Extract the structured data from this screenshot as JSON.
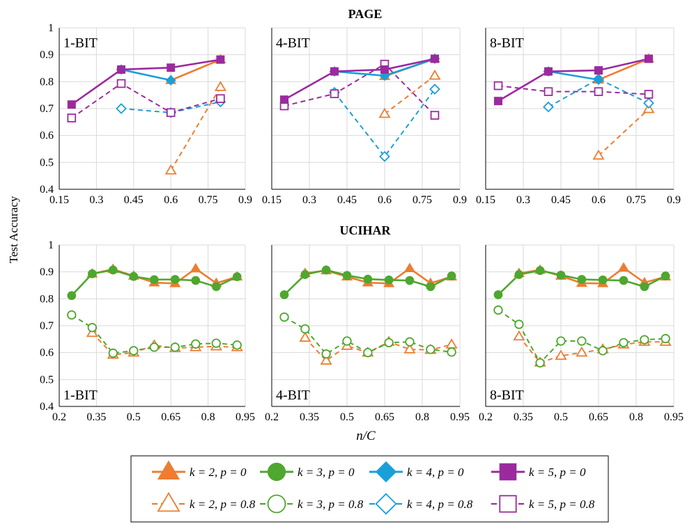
{
  "figure": {
    "ylabel": "Test Accuracy",
    "xlabel_bottom": "n/C"
  },
  "rows": [
    {
      "title": "PAGE",
      "x_ticks": [
        "0.15",
        "0.3",
        "0.45",
        "0.6",
        "0.75",
        "0.9"
      ],
      "xlim": [
        0.15,
        0.9
      ],
      "ylim": [
        0.4,
        1.0
      ],
      "y_ticks": [
        "0.4",
        "0.5",
        "0.6",
        "0.7",
        "0.8",
        "0.9",
        "1"
      ],
      "panel_label_pos": "top-left"
    },
    {
      "title": "UCIHAR",
      "x_ticks": [
        "0.2",
        "0.35",
        "0.5",
        "0.65",
        "0.8",
        "0.95"
      ],
      "xlim": [
        0.2,
        0.95
      ],
      "ylim": [
        0.4,
        1.0
      ],
      "y_ticks": [
        "0.4",
        "0.5",
        "0.6",
        "0.7",
        "0.8",
        "0.9",
        "1"
      ],
      "panel_label_pos": "bottom-left"
    }
  ],
  "series_styles": [
    {
      "id": "k2p0",
      "label": "k = 2, p = 0",
      "color": "#ED7D31",
      "marker": "triangle",
      "filled": true,
      "dashed": false
    },
    {
      "id": "k3p0",
      "label": "k = 3, p = 0",
      "color": "#4EA72E",
      "marker": "circle",
      "filled": true,
      "dashed": false
    },
    {
      "id": "k4p0",
      "label": "k = 4, p = 0",
      "color": "#1A9FD9",
      "marker": "diamond",
      "filled": true,
      "dashed": false
    },
    {
      "id": "k5p0",
      "label": "k = 5, p = 0",
      "color": "#9B2A9F",
      "marker": "square",
      "filled": true,
      "dashed": false
    },
    {
      "id": "k2p8",
      "label": "k = 2, p = 0.8",
      "color": "#ED7D31",
      "marker": "triangle",
      "filled": false,
      "dashed": true
    },
    {
      "id": "k3p8",
      "label": "k = 3, p = 0.8",
      "color": "#4EA72E",
      "marker": "circle",
      "filled": false,
      "dashed": true
    },
    {
      "id": "k4p8",
      "label": "k = 4, p = 0.8",
      "color": "#1A9FD9",
      "marker": "diamond",
      "filled": false,
      "dashed": true
    },
    {
      "id": "k5p8",
      "label": "k = 5, p = 0.8",
      "color": "#9B2A9F",
      "marker": "square",
      "filled": false,
      "dashed": true
    }
  ],
  "chart_data": [
    {
      "type": "line",
      "row": 0,
      "col": 0,
      "dataset": "PAGE",
      "panel_label": "1-BIT",
      "xlabel": "",
      "ylabel": "Test Accuracy",
      "xlim": [
        0.15,
        0.9
      ],
      "ylim": [
        0.4,
        1.0
      ],
      "series": [
        {
          "id": "k2p0",
          "x": [
            0.6,
            0.8
          ],
          "y": [
            0.805,
            0.882
          ]
        },
        {
          "id": "k4p0",
          "x": [
            0.4,
            0.6
          ],
          "y": [
            0.845,
            0.805
          ]
        },
        {
          "id": "k5p0",
          "x": [
            0.2,
            0.4,
            0.6,
            0.8
          ],
          "y": [
            0.715,
            0.845,
            0.852,
            0.882
          ]
        },
        {
          "id": "k2p8",
          "x": [
            0.6,
            0.8
          ],
          "y": [
            0.47,
            0.78
          ]
        },
        {
          "id": "k4p8",
          "x": [
            0.4,
            0.6,
            0.8
          ],
          "y": [
            0.7,
            0.685,
            0.725
          ]
        },
        {
          "id": "k5p8",
          "x": [
            0.2,
            0.4,
            0.6,
            0.8
          ],
          "y": [
            0.665,
            0.793,
            0.685,
            0.737
          ]
        }
      ]
    },
    {
      "type": "line",
      "row": 0,
      "col": 1,
      "dataset": "PAGE",
      "panel_label": "4-BIT",
      "xlabel": "",
      "ylabel": "",
      "xlim": [
        0.15,
        0.9
      ],
      "ylim": [
        0.4,
        1.0
      ],
      "series": [
        {
          "id": "k2p0",
          "x": [
            0.6,
            0.8
          ],
          "y": [
            0.82,
            0.885
          ]
        },
        {
          "id": "k4p0",
          "x": [
            0.4,
            0.6,
            0.8
          ],
          "y": [
            0.838,
            0.822,
            0.885
          ]
        },
        {
          "id": "k5p0",
          "x": [
            0.2,
            0.4,
            0.6,
            0.8
          ],
          "y": [
            0.733,
            0.838,
            0.845,
            0.885
          ]
        },
        {
          "id": "k2p8",
          "x": [
            0.6,
            0.8
          ],
          "y": [
            0.68,
            0.822
          ]
        },
        {
          "id": "k4p8",
          "x": [
            0.4,
            0.6,
            0.8
          ],
          "y": [
            0.76,
            0.522,
            0.772
          ]
        },
        {
          "id": "k5p8",
          "x": [
            0.2,
            0.4,
            0.6,
            0.8
          ],
          "y": [
            0.71,
            0.755,
            0.865,
            0.675
          ]
        }
      ]
    },
    {
      "type": "line",
      "row": 0,
      "col": 2,
      "dataset": "PAGE",
      "panel_label": "8-BIT",
      "xlabel": "",
      "ylabel": "",
      "xlim": [
        0.15,
        0.9
      ],
      "ylim": [
        0.4,
        1.0
      ],
      "series": [
        {
          "id": "k2p0",
          "x": [
            0.6,
            0.8
          ],
          "y": [
            0.807,
            0.885
          ]
        },
        {
          "id": "k4p0",
          "x": [
            0.4,
            0.6
          ],
          "y": [
            0.838,
            0.807
          ]
        },
        {
          "id": "k5p0",
          "x": [
            0.2,
            0.4,
            0.6,
            0.8
          ],
          "y": [
            0.728,
            0.838,
            0.842,
            0.885
          ]
        },
        {
          "id": "k2p8",
          "x": [
            0.6,
            0.8
          ],
          "y": [
            0.525,
            0.698
          ]
        },
        {
          "id": "k4p8",
          "x": [
            0.4,
            0.6,
            0.8
          ],
          "y": [
            0.706,
            0.81,
            0.72
          ]
        },
        {
          "id": "k5p8",
          "x": [
            0.2,
            0.4,
            0.6,
            0.8
          ],
          "y": [
            0.785,
            0.763,
            0.763,
            0.753
          ]
        }
      ]
    },
    {
      "type": "line",
      "row": 1,
      "col": 0,
      "dataset": "UCIHAR",
      "panel_label": "1-BIT",
      "xlabel": "",
      "ylabel": "Test Accuracy",
      "xlim": [
        0.2,
        0.95
      ],
      "ylim": [
        0.4,
        1.0
      ],
      "series": [
        {
          "id": "k2p0",
          "x": [
            0.333,
            0.417,
            0.5,
            0.583,
            0.667,
            0.75,
            0.833,
            0.917
          ],
          "y": [
            0.893,
            0.91,
            0.885,
            0.86,
            0.857,
            0.912,
            0.858,
            0.882
          ]
        },
        {
          "id": "k3p0",
          "x": [
            0.25,
            0.333,
            0.417,
            0.5,
            0.583,
            0.667,
            0.75,
            0.833,
            0.917
          ],
          "y": [
            0.812,
            0.893,
            0.907,
            0.883,
            0.871,
            0.872,
            0.868,
            0.845,
            0.882
          ]
        },
        {
          "id": "k2p8",
          "x": [
            0.333,
            0.417,
            0.5,
            0.583,
            0.667,
            0.75,
            0.833,
            0.917
          ],
          "y": [
            0.673,
            0.592,
            0.6,
            0.627,
            0.617,
            0.62,
            0.623,
            0.62
          ]
        },
        {
          "id": "k3p8",
          "x": [
            0.25,
            0.333,
            0.417,
            0.5,
            0.583,
            0.667,
            0.75,
            0.833,
            0.917
          ],
          "y": [
            0.74,
            0.693,
            0.598,
            0.607,
            0.62,
            0.62,
            0.632,
            0.635,
            0.628
          ]
        }
      ]
    },
    {
      "type": "line",
      "row": 1,
      "col": 1,
      "dataset": "UCIHAR",
      "panel_label": "4-BIT",
      "xlabel": "n/C",
      "ylabel": "",
      "xlim": [
        0.2,
        0.95
      ],
      "ylim": [
        0.4,
        1.0
      ],
      "series": [
        {
          "id": "k2p0",
          "x": [
            0.333,
            0.417,
            0.5,
            0.583,
            0.667,
            0.75,
            0.833,
            0.917
          ],
          "y": [
            0.895,
            0.905,
            0.882,
            0.86,
            0.857,
            0.913,
            0.858,
            0.882
          ]
        },
        {
          "id": "k3p0",
          "x": [
            0.25,
            0.333,
            0.417,
            0.5,
            0.583,
            0.667,
            0.75,
            0.833,
            0.917
          ],
          "y": [
            0.815,
            0.89,
            0.907,
            0.887,
            0.873,
            0.87,
            0.868,
            0.845,
            0.885
          ]
        },
        {
          "id": "k2p8",
          "x": [
            0.333,
            0.417,
            0.5,
            0.583,
            0.667,
            0.75,
            0.833,
            0.917
          ],
          "y": [
            0.655,
            0.57,
            0.625,
            0.6,
            0.64,
            0.612,
            0.61,
            0.63
          ]
        },
        {
          "id": "k3p8",
          "x": [
            0.25,
            0.333,
            0.417,
            0.5,
            0.583,
            0.667,
            0.75,
            0.833,
            0.917
          ],
          "y": [
            0.732,
            0.688,
            0.595,
            0.643,
            0.6,
            0.637,
            0.64,
            0.612,
            0.602
          ]
        }
      ]
    },
    {
      "type": "line",
      "row": 1,
      "col": 2,
      "dataset": "UCIHAR",
      "panel_label": "8-BIT",
      "xlabel": "",
      "ylabel": "",
      "xlim": [
        0.2,
        0.95
      ],
      "ylim": [
        0.4,
        1.0
      ],
      "series": [
        {
          "id": "k2p0",
          "x": [
            0.333,
            0.417,
            0.5,
            0.583,
            0.667,
            0.75,
            0.833,
            0.917
          ],
          "y": [
            0.895,
            0.907,
            0.885,
            0.858,
            0.857,
            0.915,
            0.86,
            0.882
          ]
        },
        {
          "id": "k3p0",
          "x": [
            0.25,
            0.333,
            0.417,
            0.5,
            0.583,
            0.667,
            0.75,
            0.833,
            0.917
          ],
          "y": [
            0.815,
            0.89,
            0.905,
            0.888,
            0.872,
            0.87,
            0.868,
            0.845,
            0.885
          ]
        },
        {
          "id": "k2p8",
          "x": [
            0.333,
            0.417,
            0.5,
            0.583,
            0.667,
            0.75,
            0.833,
            0.917
          ],
          "y": [
            0.66,
            0.563,
            0.588,
            0.6,
            0.612,
            0.63,
            0.64,
            0.64
          ]
        },
        {
          "id": "k3p8",
          "x": [
            0.25,
            0.333,
            0.417,
            0.5,
            0.583,
            0.667,
            0.75,
            0.833,
            0.917
          ],
          "y": [
            0.758,
            0.705,
            0.562,
            0.643,
            0.643,
            0.607,
            0.637,
            0.648,
            0.652
          ]
        }
      ]
    }
  ]
}
